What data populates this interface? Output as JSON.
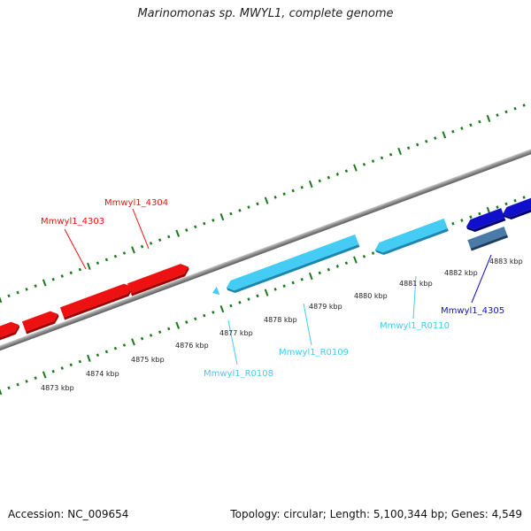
{
  "title": "Marinomonas sp. MWYL1, complete genome",
  "footer": {
    "accession_text": "Accession: NC_009654",
    "summary_text": "Topology: circular; Length: 5,100,344 bp; Genes: 4,549"
  },
  "colors": {
    "forward_gene": "#ee1111",
    "rna_gene": "#44ccf4",
    "reverse_gene": "#1010cc",
    "other_gene": "#4a7aa8",
    "tick": "#1a7a1a",
    "backbone": "#8a8a8a"
  },
  "scale_labels": [
    "4873 kbp",
    "4874 kbp",
    "4875 kbp",
    "4876 kbp",
    "4877 kbp",
    "4878 kbp",
    "4879 kbp",
    "4880 kbp",
    "4881 kbp",
    "4882 kbp",
    "4883 kbp"
  ],
  "gene_labels": [
    {
      "name": "Mmwyl1_4303",
      "type": "forward"
    },
    {
      "name": "Mmwyl1_4304",
      "type": "forward"
    },
    {
      "name": "Mmwyl1_R0108",
      "type": "rna"
    },
    {
      "name": "Mmwyl1_R0109",
      "type": "rna"
    },
    {
      "name": "Mmwyl1_R0110",
      "type": "rna"
    },
    {
      "name": "Mmwyl1_4305",
      "type": "reverse"
    }
  ]
}
